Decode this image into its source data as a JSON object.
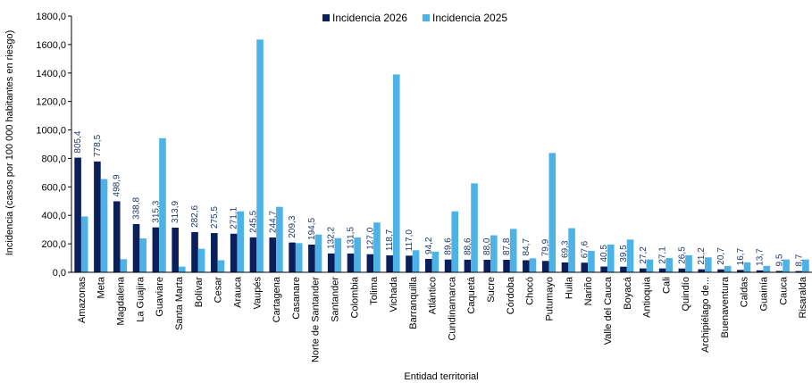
{
  "chart_data": {
    "type": "bar",
    "xlabel": "Entidad territorial",
    "ylabel": "Incidencia (casos por 100 000 habitantes en riesgo)",
    "ylim": [
      0,
      1800
    ],
    "ytick_step": 200,
    "ytick_labels": [
      "0,0",
      "200,0",
      "400,0",
      "600,0",
      "800,0",
      "1000,0",
      "1200,0",
      "1400,0",
      "1600,0",
      "1800,0"
    ],
    "grid": false,
    "legend_position": "top-center",
    "categories": [
      "Amazonas",
      "Meta",
      "Magdalena",
      "La Guajira",
      "Guaviare",
      "Santa Marta",
      "Bolívar",
      "Cesar",
      "Arauca",
      "Vaupés",
      "Cartagena",
      "Casanare",
      "Norte de Santander",
      "Santander",
      "Colombia",
      "Tolima",
      "Vichada",
      "Barranquilla",
      "Atlántico",
      "Cundinamarca",
      "Caquetá",
      "Sucre",
      "Córdoba",
      "Chocó",
      "Putumayo",
      "Huila",
      "Nariño",
      "Valle del Cauca",
      "Boyacá",
      "Antioquia",
      "Cali",
      "Quindío",
      "Archipiélago de...",
      "Buenaventura",
      "Caldas",
      "Guainía",
      "Cauca",
      "Risaralda"
    ],
    "series": [
      {
        "name": "Incidencia 2026",
        "color": "#0b1f5c",
        "values": [
          805.4,
          778.5,
          498.9,
          338.8,
          315.3,
          313.9,
          282.6,
          275.5,
          271.1,
          245.5,
          244.7,
          209.3,
          194.5,
          132.2,
          131.5,
          127.0,
          118.7,
          117.0,
          94.2,
          89.6,
          88.6,
          88.0,
          87.8,
          84.7,
          79.9,
          69.3,
          67.6,
          40.5,
          39.5,
          27.2,
          27.1,
          26.5,
          21.2,
          20.7,
          16.7,
          13.7,
          9.5,
          8.7
        ],
        "labels": [
          "805,4",
          "778,5",
          "498,9",
          "338,8",
          "315,3",
          "313,9",
          "282,6",
          "275,5",
          "271,1",
          "245,5",
          "244,7",
          "209,3",
          "194,5",
          "132,2",
          "131,5",
          "127,0",
          "118,7",
          "117,0",
          "94,2",
          "89,6",
          "88,6",
          "88,0",
          "87,8",
          "84,7",
          "79,9",
          "69,3",
          "67,6",
          "40,5",
          "39,5",
          "27,2",
          "27,1",
          "26,5",
          "21,2",
          "20,7",
          "16,7",
          "13,7",
          "9,5",
          "8,7"
        ]
      },
      {
        "name": "Incidencia 2025",
        "color": "#4db3e6",
        "values": [
          392,
          655,
          92,
          238,
          942,
          40,
          165,
          85,
          428,
          1635,
          460,
          205,
          265,
          240,
          245,
          350,
          1390,
          155,
          145,
          428,
          625,
          260,
          305,
          98,
          838,
          310,
          150,
          195,
          230,
          90,
          100,
          120,
          105,
          45,
          70,
          45,
          90,
          90
        ]
      }
    ]
  }
}
